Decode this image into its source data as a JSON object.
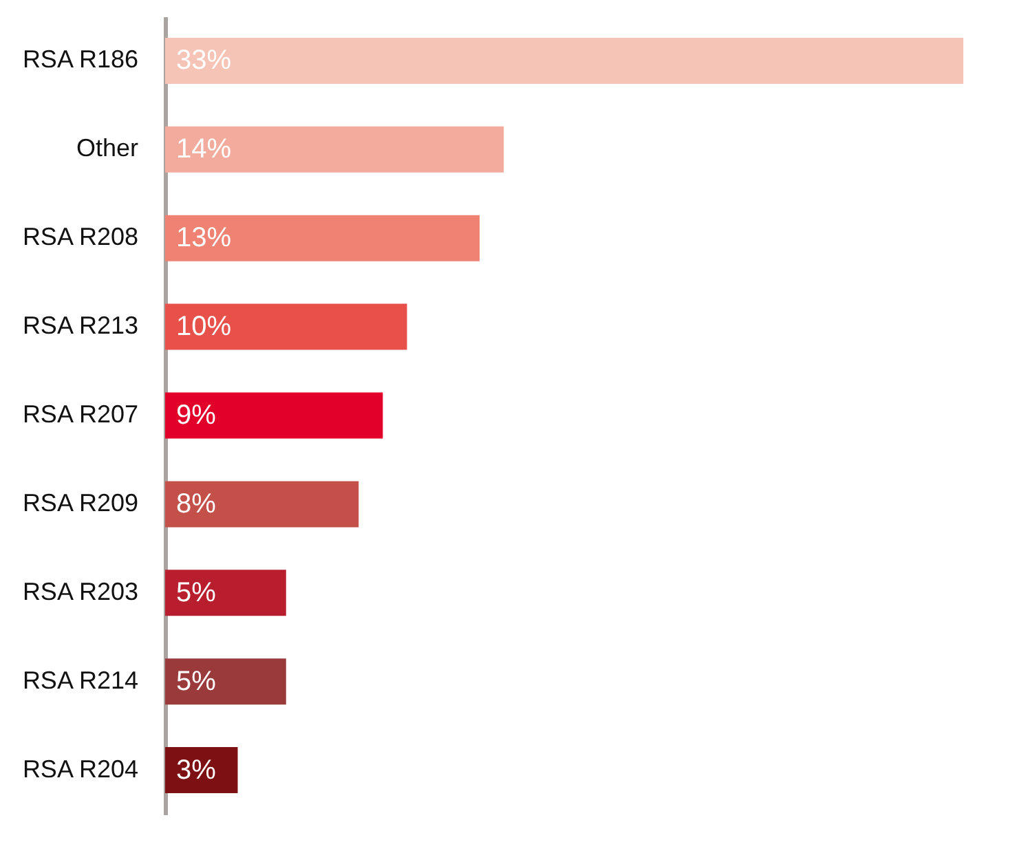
{
  "chart_data": {
    "type": "bar",
    "orientation": "horizontal",
    "categories": [
      "RSA R186",
      "Other",
      "RSA R208",
      "RSA R213",
      "RSA R207",
      "RSA R209",
      "RSA R203",
      "RSA R214",
      "RSA R204"
    ],
    "values": [
      33,
      14,
      13,
      10,
      9,
      8,
      5,
      5,
      3
    ],
    "value_labels": [
      "33%",
      "14%",
      "13%",
      "10%",
      "9%",
      "8%",
      "5%",
      "5%",
      "3%"
    ],
    "colors": [
      "#f6c4b6",
      "#f2ab9c",
      "#ef8272",
      "#e8514a",
      "#e2002a",
      "#c4504a",
      "#b81e2d",
      "#9a3a3a",
      "#7d1013"
    ]
  }
}
